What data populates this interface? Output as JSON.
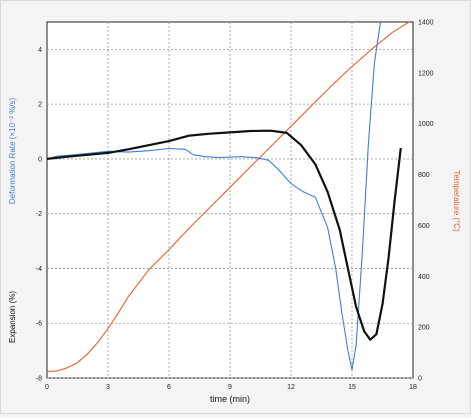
{
  "chart_data": {
    "type": "line",
    "xlabel": "time (min)",
    "ylabel_left_expansion": "Expansion (%)",
    "ylabel_left_rate": "Deformation Rate (×10⁻² %/s)",
    "ylabel_right": "Temperature (°C)",
    "x_ticks": [
      "0",
      "3",
      "6",
      "9",
      "12",
      "15",
      "18"
    ],
    "y_left_ticks": [
      "-8",
      "-6",
      "-4",
      "-2",
      "0",
      "2",
      "4"
    ],
    "y_right_ticks": [
      "0",
      "200",
      "400",
      "600",
      "800",
      "1000",
      "1200",
      "1400"
    ],
    "xlim": [
      0,
      18
    ],
    "ylim_left": [
      -8,
      5
    ],
    "ylim_right": [
      0,
      1400
    ],
    "grid": true,
    "colors": {
      "expansion": "#111111",
      "rate": "#3f7fd4",
      "temperature": "#e8602c",
      "left_label_expansion": "#111111",
      "left_label_rate": "#3f7fd4",
      "right_label": "#e8602c"
    },
    "series": [
      {
        "key": "expansion",
        "axis": "left",
        "x": [
          0,
          1,
          2,
          3,
          4,
          5,
          6,
          7,
          8,
          9,
          10,
          11,
          11.8,
          12.5,
          13.2,
          13.8,
          14.4,
          14.8,
          15.2,
          15.6,
          15.9,
          16.2,
          16.5,
          16.8,
          17.1,
          17.4
        ],
        "y": [
          0.0,
          0.08,
          0.15,
          0.22,
          0.35,
          0.5,
          0.65,
          0.85,
          0.92,
          0.97,
          1.02,
          1.03,
          0.95,
          0.5,
          -0.2,
          -1.2,
          -2.6,
          -4.0,
          -5.4,
          -6.3,
          -6.6,
          -6.4,
          -5.3,
          -3.6,
          -1.5,
          0.4
        ]
      },
      {
        "key": "rate",
        "axis": "left",
        "x": [
          0,
          0.5,
          1,
          2,
          3,
          4,
          5,
          6,
          6.8,
          7.2,
          7.8,
          8.5,
          9.5,
          10.3,
          10.9,
          11.4,
          12,
          12.6,
          13.2,
          13.8,
          14.2,
          14.5,
          14.8,
          15.0,
          15.2,
          15.5,
          15.8,
          16.1,
          16.4
        ],
        "y": [
          0.0,
          0.1,
          0.13,
          0.2,
          0.28,
          0.25,
          0.3,
          0.38,
          0.35,
          0.15,
          0.08,
          0.05,
          0.08,
          0.05,
          -0.05,
          -0.4,
          -0.9,
          -1.2,
          -1.4,
          -2.5,
          -4.0,
          -5.6,
          -7.0,
          -7.7,
          -6.8,
          -3.5,
          0.5,
          3.5,
          5.0
        ]
      },
      {
        "key": "temperature",
        "axis": "right",
        "x": [
          0,
          0.5,
          1,
          1.5,
          2,
          2.5,
          3,
          3.5,
          4,
          5,
          6,
          7,
          8,
          9,
          10,
          11,
          12,
          13,
          14,
          15,
          16,
          17,
          18
        ],
        "y": [
          25,
          28,
          40,
          60,
          95,
          140,
          195,
          255,
          320,
          425,
          505,
          590,
          670,
          750,
          830,
          910,
          990,
          1070,
          1150,
          1225,
          1295,
          1360,
          1410
        ]
      }
    ]
  }
}
